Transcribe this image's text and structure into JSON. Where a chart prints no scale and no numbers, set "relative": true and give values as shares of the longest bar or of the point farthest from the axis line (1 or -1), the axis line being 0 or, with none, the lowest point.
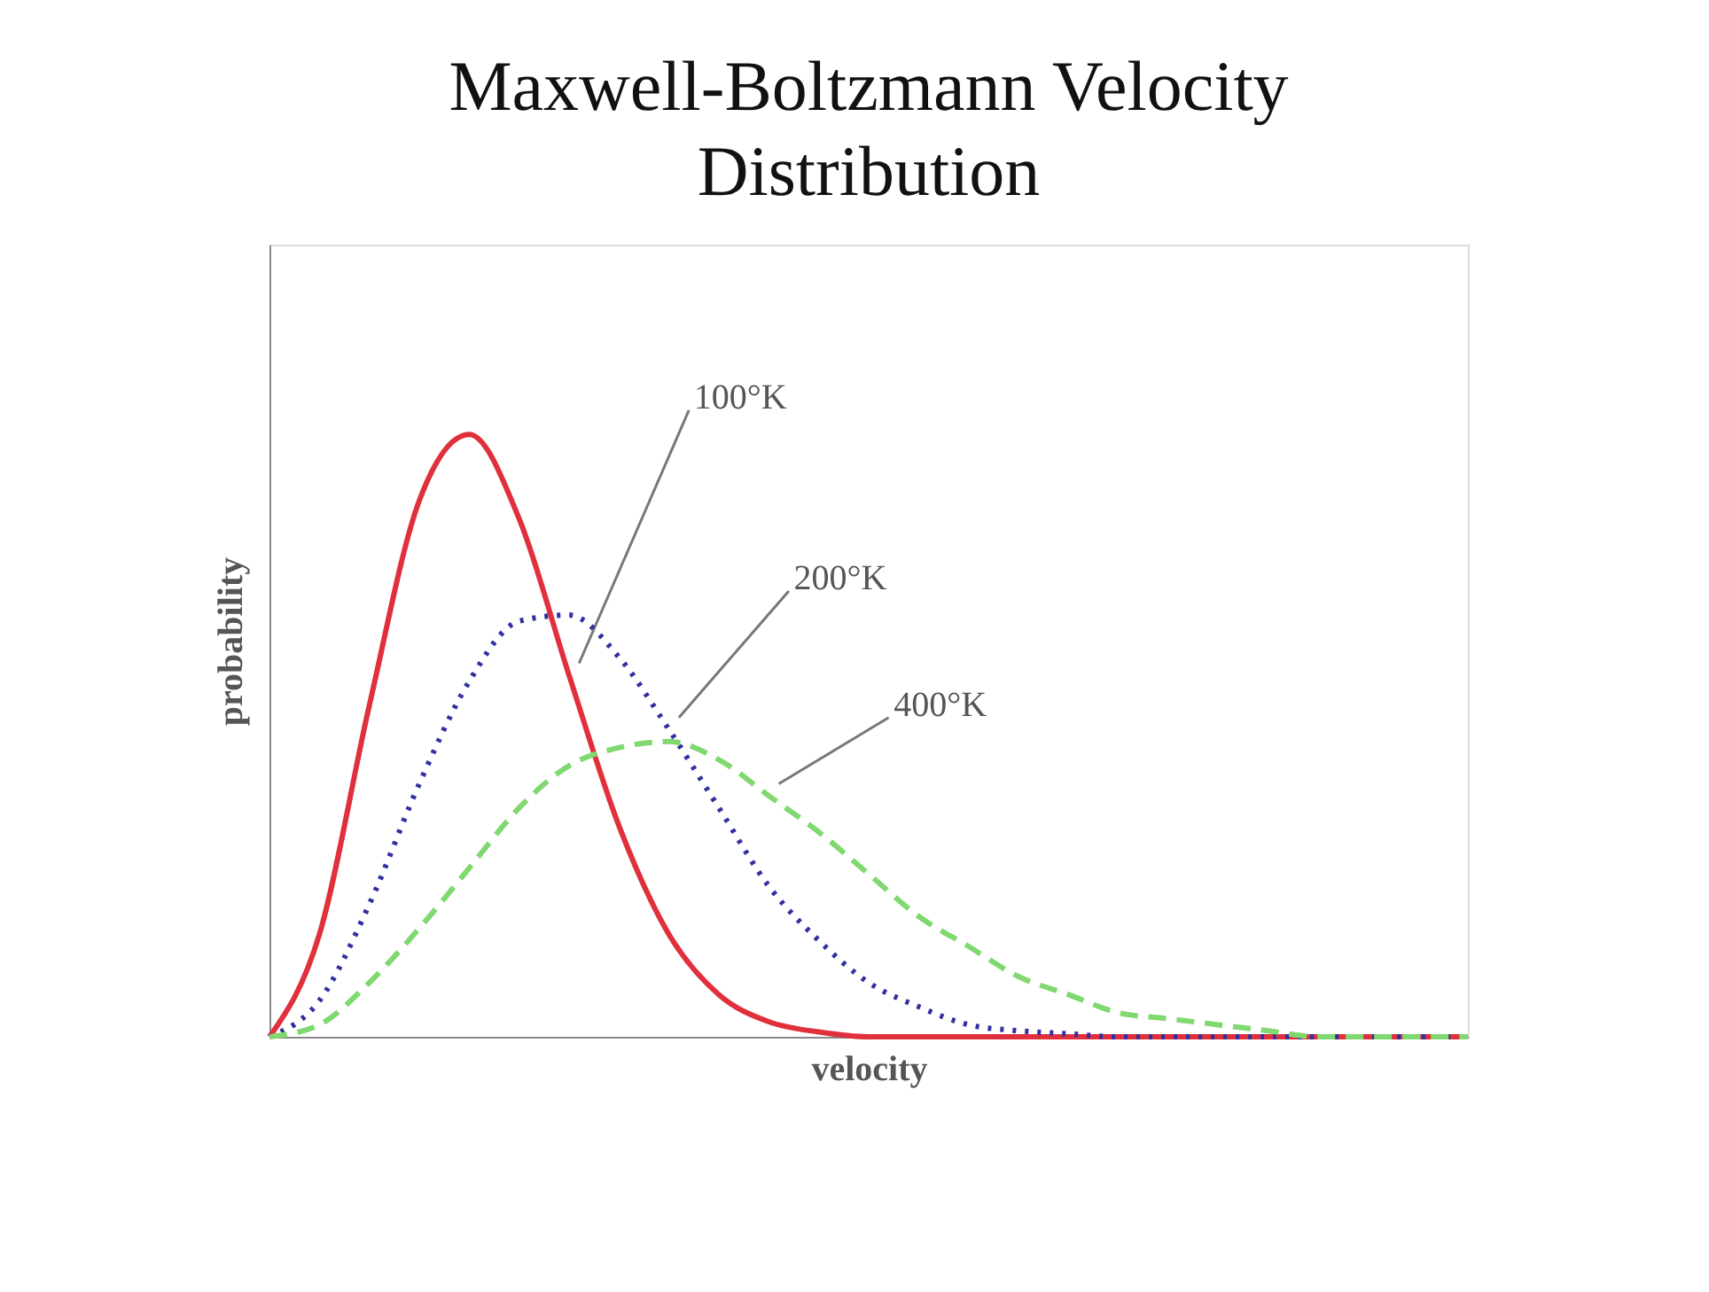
{
  "chart_data": {
    "type": "line",
    "title": "Maxwell-Boltzmann Velocity Distribution",
    "xlabel": "velocity",
    "ylabel": "probability",
    "relative": true,
    "legend": false,
    "grid": false,
    "marker": "none",
    "tick_labels": false,
    "categories": [
      null,
      null,
      null,
      null,
      null,
      null,
      null,
      null,
      null,
      null,
      null,
      null,
      null,
      null,
      null,
      null,
      null,
      null,
      null,
      null,
      null,
      null,
      null,
      null,
      null
    ],
    "series": [
      {
        "name": "100°K",
        "color": "#e0303c",
        "line_style": "solid",
        "values": [
          0,
          0.17,
          0.55,
          0.89,
          1.0,
          0.86,
          0.6,
          0.35,
          0.17,
          0.07,
          0.025,
          0.008,
          0,
          0,
          0,
          0,
          0,
          0,
          0,
          0,
          0,
          0,
          0,
          0,
          0
        ]
      },
      {
        "name": "200°K",
        "color": "#3030a0",
        "line_style": "dotted",
        "values": [
          0,
          0.06,
          0.22,
          0.42,
          0.59,
          0.69,
          0.7,
          0.63,
          0.51,
          0.38,
          0.25,
          0.16,
          0.09,
          0.05,
          0.02,
          0.01,
          0.005,
          0,
          0,
          0,
          0,
          0,
          0,
          0,
          0
        ]
      },
      {
        "name": "400°K",
        "color": "#80d870",
        "line_style": "dashed",
        "values": [
          0,
          0.02,
          0.09,
          0.18,
          0.28,
          0.38,
          0.45,
          0.48,
          0.49,
          0.46,
          0.4,
          0.34,
          0.27,
          0.2,
          0.15,
          0.1,
          0.07,
          0.04,
          0.03,
          0.02,
          0.01,
          0,
          0,
          0,
          0
        ]
      }
    ]
  }
}
